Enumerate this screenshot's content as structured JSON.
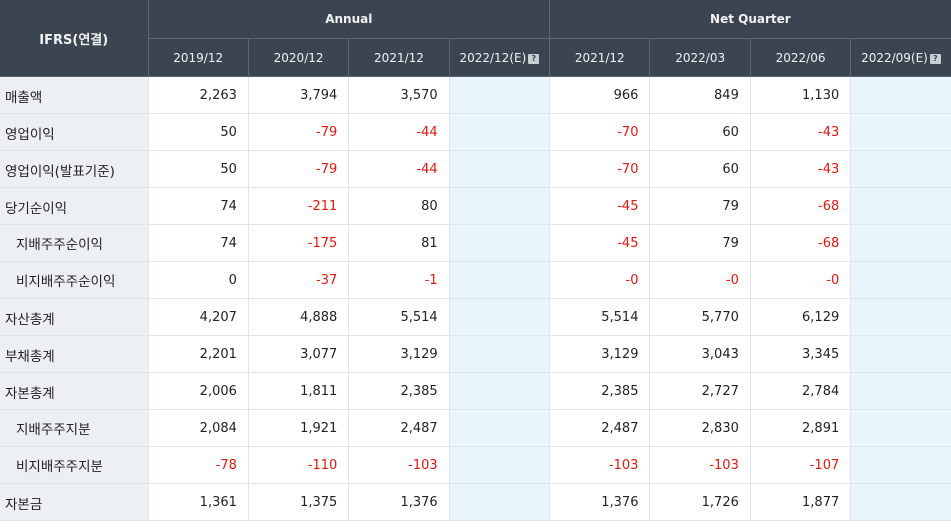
{
  "header": {
    "corner": "IFRS(연결)",
    "group_annual": "Annual",
    "group_quarter": "Net Quarter",
    "periods": [
      "2019/12",
      "2020/12",
      "2021/12",
      "2022/12(E)",
      "2021/12",
      "2022/03",
      "2022/06",
      "2022/09(E)"
    ],
    "estimate_icon": "help-question-icon",
    "estimate_icon_glyph": "?"
  },
  "colors": {
    "header_bg": "#3b4551",
    "label_bg": "#ecf0f5",
    "estimate_bg": "#e8f5fc",
    "negative": "#e8160c"
  },
  "rows": [
    {
      "label": "매출액",
      "sub": false,
      "values": [
        "2,263",
        "3,794",
        "3,570",
        "",
        "966",
        "849",
        "1,130",
        ""
      ]
    },
    {
      "label": "영업이익",
      "sub": false,
      "values": [
        "50",
        "-79",
        "-44",
        "",
        "-70",
        "60",
        "-43",
        ""
      ]
    },
    {
      "label": "영업이익(발표기준)",
      "sub": false,
      "values": [
        "50",
        "-79",
        "-44",
        "",
        "-70",
        "60",
        "-43",
        ""
      ]
    },
    {
      "label": "당기순이익",
      "sub": false,
      "values": [
        "74",
        "-211",
        "80",
        "",
        "-45",
        "79",
        "-68",
        ""
      ]
    },
    {
      "label": "지배주주순이익",
      "sub": true,
      "values": [
        "74",
        "-175",
        "81",
        "",
        "-45",
        "79",
        "-68",
        ""
      ]
    },
    {
      "label": "비지배주주순이익",
      "sub": true,
      "values": [
        "0",
        "-37",
        "-1",
        "",
        "-0",
        "-0",
        "-0",
        ""
      ]
    },
    {
      "label": "자산총계",
      "sub": false,
      "values": [
        "4,207",
        "4,888",
        "5,514",
        "",
        "5,514",
        "5,770",
        "6,129",
        ""
      ]
    },
    {
      "label": "부채총계",
      "sub": false,
      "values": [
        "2,201",
        "3,077",
        "3,129",
        "",
        "3,129",
        "3,043",
        "3,345",
        ""
      ]
    },
    {
      "label": "자본총계",
      "sub": false,
      "values": [
        "2,006",
        "1,811",
        "2,385",
        "",
        "2,385",
        "2,727",
        "2,784",
        ""
      ]
    },
    {
      "label": "지배주주지분",
      "sub": true,
      "values": [
        "2,084",
        "1,921",
        "2,487",
        "",
        "2,487",
        "2,830",
        "2,891",
        ""
      ]
    },
    {
      "label": "비지배주주지분",
      "sub": true,
      "values": [
        "-78",
        "-110",
        "-103",
        "",
        "-103",
        "-103",
        "-107",
        ""
      ]
    },
    {
      "label": "자본금",
      "sub": false,
      "values": [
        "1,361",
        "1,375",
        "1,376",
        "",
        "1,376",
        "1,726",
        "1,877",
        ""
      ]
    }
  ]
}
